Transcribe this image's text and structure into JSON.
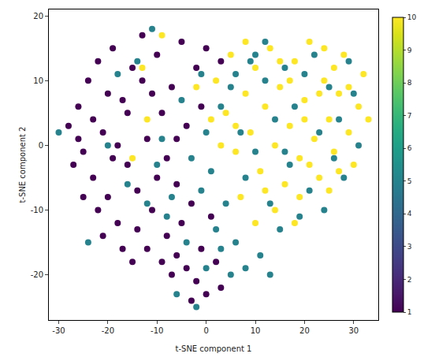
{
  "chart_data": {
    "type": "scatter",
    "x_label": "t-SNE component 1",
    "y_label": "t-SNE component 2",
    "xlim": [
      -32,
      35
    ],
    "ylim": [
      -27,
      21
    ],
    "xticks": [
      -30,
      -20,
      -10,
      0,
      10,
      20,
      30
    ],
    "yticks": [
      -20,
      -10,
      0,
      10,
      20
    ],
    "grid": false,
    "marker": "circle",
    "colorbar": {
      "range": [
        1,
        10
      ],
      "ticks": [
        1,
        2,
        3,
        4,
        5,
        6,
        7,
        8,
        9,
        10
      ]
    },
    "series": [
      {
        "value": 1,
        "x": [
          -28,
          -27,
          -26,
          -25,
          -24,
          -23,
          -22,
          -21,
          -20,
          -19,
          -18,
          -17,
          -16,
          -15,
          -14,
          -13,
          -12,
          -11,
          -10,
          -9,
          -8,
          -7,
          -6,
          -5,
          -4,
          -3,
          -2,
          -22,
          -25,
          -20,
          -18,
          -16,
          -14,
          -12,
          -10,
          -8,
          -6,
          -4,
          -2,
          0,
          -3,
          -7,
          -1,
          2,
          3,
          -9,
          -5,
          -11,
          -13,
          -19,
          -23,
          -26,
          -21,
          -17,
          1,
          -1,
          0,
          3,
          -6,
          -15
        ],
        "y": [
          3,
          -3,
          6,
          -1,
          10,
          -5,
          13,
          2,
          -8,
          15,
          -12,
          7,
          -3,
          12,
          -7,
          17,
          1,
          -10,
          14,
          5,
          -2,
          9,
          -6,
          16,
          3,
          -9,
          12,
          -10,
          -8,
          8,
          0,
          5,
          -13,
          -16,
          -5,
          -14,
          -17,
          -19,
          -21,
          -23,
          -24,
          -20,
          -16,
          -18,
          -22,
          -18,
          -12,
          8,
          10,
          -2,
          4,
          1,
          -14,
          -16,
          -11,
          6,
          15,
          13,
          1,
          -18
        ]
      },
      {
        "value": 5,
        "x": [
          -30,
          -24,
          -20,
          -14,
          -11,
          -10,
          -7,
          -5,
          -3,
          -1,
          0,
          1,
          2,
          3,
          4,
          5,
          6,
          7,
          8,
          9,
          10,
          11,
          12,
          13,
          14,
          15,
          16,
          17,
          18,
          19,
          20,
          21,
          22,
          23,
          24,
          25,
          26,
          27,
          28,
          29,
          30,
          31,
          12,
          10,
          -4,
          -2,
          -6,
          0,
          3,
          5,
          -8,
          -12,
          -16,
          -18,
          -9,
          8,
          13,
          6,
          16,
          -1
        ],
        "y": [
          2,
          -15,
          0,
          13,
          18,
          -3,
          -8,
          7,
          -2,
          -7,
          2,
          -4,
          -13,
          6,
          -9,
          9,
          -15,
          2,
          -5,
          13,
          -1,
          -17,
          10,
          -9,
          4,
          -13,
          12,
          -3,
          6,
          -11,
          11,
          -7,
          14,
          2,
          -10,
          9,
          -2,
          4,
          -5,
          13,
          8,
          0,
          16,
          14,
          -15,
          -25,
          -23,
          -19,
          -16,
          -20,
          -11,
          -9,
          -6,
          11,
          1,
          -19,
          -20,
          11,
          -1,
          11
        ]
      },
      {
        "value": 10,
        "x": [
          2,
          4,
          5,
          6,
          8,
          9,
          10,
          11,
          12,
          13,
          14,
          15,
          16,
          17,
          18,
          19,
          20,
          21,
          22,
          23,
          24,
          25,
          26,
          27,
          28,
          29,
          30,
          31,
          32,
          7,
          10,
          14,
          19,
          23,
          26,
          21,
          17,
          12,
          25,
          29,
          3,
          6,
          1,
          -2,
          -9,
          -13,
          -15,
          -12,
          15,
          8,
          20,
          27,
          33,
          24,
          18
        ],
        "y": [
          10,
          5,
          14,
          -1,
          8,
          2,
          12,
          -4,
          6,
          15,
          0,
          9,
          -6,
          3,
          13,
          -2,
          7,
          16,
          1,
          -5,
          10,
          4,
          -1,
          8,
          14,
          2,
          -3,
          6,
          11,
          -8,
          -12,
          -10,
          -8,
          8,
          12,
          -3,
          10,
          -7,
          -7,
          9,
          0,
          3,
          4,
          9,
          17,
          12,
          -2,
          4,
          13,
          16,
          4,
          -4,
          4,
          15,
          -12
        ]
      }
    ]
  }
}
